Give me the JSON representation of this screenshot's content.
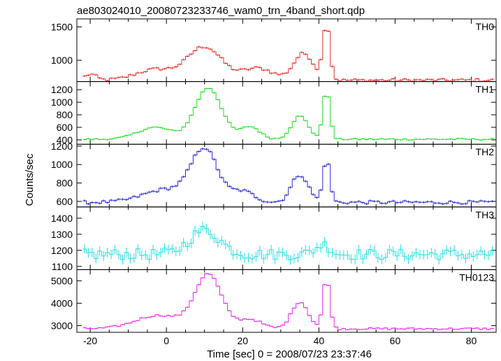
{
  "title": "ae803024010_20080723233746_wam0_trn_4band_short.qdp",
  "chart_data": {
    "type": "line",
    "subtype": "step-with-errorbars",
    "title": "ae803024010_20080723233746_wam0_trn_4band_short.qdp",
    "xlabel": "Time [sec] 0 = 2008/07/23 23:37:46",
    "ylabel": "Counts/sec",
    "xlim": [
      -23.5,
      86.5
    ],
    "xticks": [
      -20,
      0,
      20,
      40,
      60,
      80
    ],
    "grid": false,
    "legend": "none",
    "panels": [
      {
        "name": "TH0",
        "color": "#e8312f",
        "ylim": [
          680,
          1620
        ],
        "yticks": [
          1000,
          1500
        ],
        "base": 700,
        "noise": 25,
        "err": 16,
        "flares": [
          [
            -20,
            90,
            1.5
          ],
          [
            -3,
            160,
            5
          ],
          [
            10,
            500,
            4.5
          ],
          [
            24,
            180,
            4
          ],
          [
            36,
            400,
            2.6
          ],
          [
            42,
            850,
            0.9
          ]
        ]
      },
      {
        "name": "TH1",
        "color": "#22dd22",
        "ylim": [
          330,
          1330
        ],
        "yticks": [
          400,
          600,
          800,
          1000,
          1200
        ],
        "base": 410,
        "noise": 14,
        "err": 12,
        "flares": [
          [
            -3,
            190,
            4.5
          ],
          [
            11,
            820,
            3.5
          ],
          [
            22,
            200,
            2.5
          ],
          [
            35,
            370,
            2.2
          ],
          [
            42,
            800,
            0.9
          ]
        ]
      },
      {
        "name": "TH2",
        "color": "#2a2ad0",
        "ylim": [
          540,
          1220
        ],
        "yticks": [
          600,
          800,
          1000,
          1200
        ],
        "base": 590,
        "noise": 18,
        "err": 13,
        "flares": [
          [
            0,
            140,
            6
          ],
          [
            10,
            560,
            3.5
          ],
          [
            20,
            120,
            3
          ],
          [
            35,
            300,
            2.2
          ],
          [
            42,
            470,
            0.9
          ]
        ]
      },
      {
        "name": "TH3",
        "color": "#22e0e0",
        "ylim": [
          1080,
          1470
        ],
        "yticks": [
          1100,
          1200,
          1300,
          1400
        ],
        "base": 1175,
        "noise": 35,
        "err": 30,
        "flares": [
          [
            10,
            150,
            4
          ],
          [
            41,
            60,
            2
          ]
        ]
      },
      {
        "name": "TH0123",
        "color": "#ee22ee",
        "ylim": [
          2700,
          5500
        ],
        "yticks": [
          3000,
          4000,
          5000
        ],
        "base": 2860,
        "noise": 45,
        "err": 30,
        "flares": [
          [
            -2,
            600,
            6
          ],
          [
            11,
            2400,
            3.5
          ],
          [
            22,
            420,
            3
          ],
          [
            35,
            1200,
            2.2
          ],
          [
            42,
            2250,
            0.9
          ]
        ]
      }
    ]
  }
}
